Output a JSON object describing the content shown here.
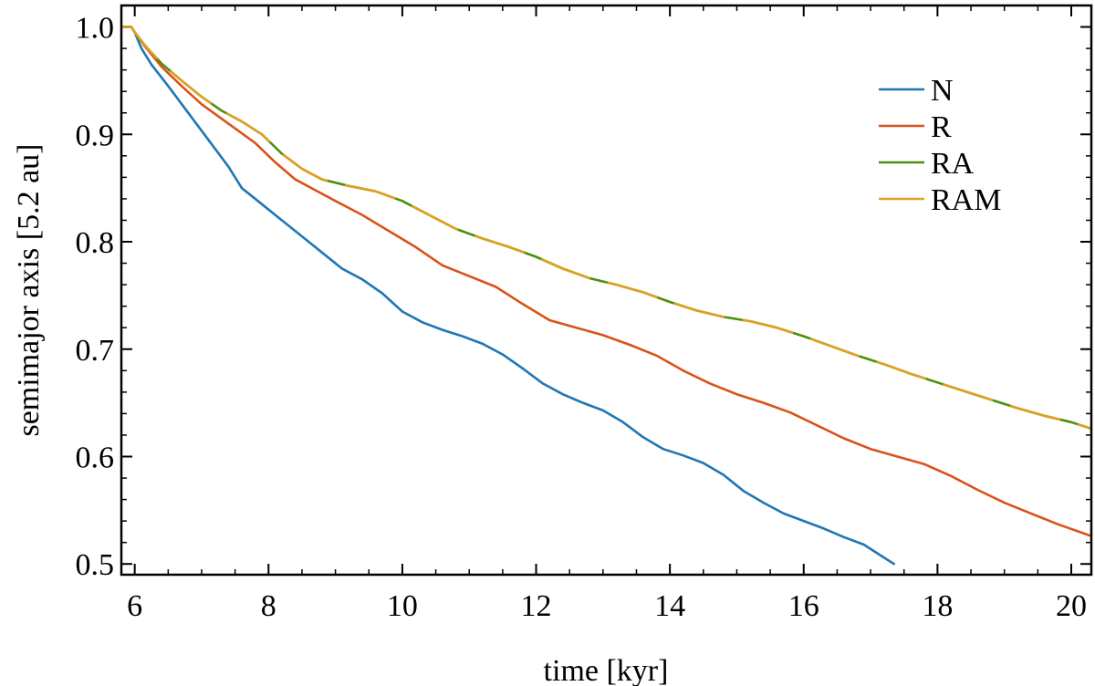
{
  "chart_data": {
    "type": "line",
    "title": "",
    "xlabel": "time [kyr]",
    "ylabel": "semimajor axis [5.2 au]",
    "xlim": [
      5.8,
      20.3
    ],
    "ylim": [
      0.49,
      1.02
    ],
    "x_ticks": [
      6,
      8,
      10,
      12,
      14,
      16,
      18,
      20
    ],
    "x_tick_labels": [
      "6",
      "8",
      "10",
      "12",
      "14",
      "16",
      "18",
      "20"
    ],
    "x_minor_step": 0.5,
    "y_ticks": [
      0.5,
      0.6,
      0.7,
      0.8,
      0.9,
      1.0
    ],
    "y_tick_labels": [
      "0.5",
      "0.6",
      "0.7",
      "0.8",
      "0.9",
      "1.0"
    ],
    "y_minor_step": 0.02,
    "grid": false,
    "legend_position": "top-right",
    "series": [
      {
        "name": "N",
        "color": "#1f77b4",
        "dashed": false,
        "points": [
          [
            5.8,
            1.0
          ],
          [
            5.95,
            1.0
          ],
          [
            6.0,
            0.995
          ],
          [
            6.1,
            0.98
          ],
          [
            6.25,
            0.965
          ],
          [
            6.5,
            0.945
          ],
          [
            6.8,
            0.92
          ],
          [
            7.1,
            0.895
          ],
          [
            7.4,
            0.87
          ],
          [
            7.6,
            0.85
          ],
          [
            7.9,
            0.835
          ],
          [
            8.2,
            0.82
          ],
          [
            8.5,
            0.805
          ],
          [
            8.8,
            0.79
          ],
          [
            9.1,
            0.775
          ],
          [
            9.4,
            0.765
          ],
          [
            9.7,
            0.752
          ],
          [
            10.0,
            0.735
          ],
          [
            10.3,
            0.725
          ],
          [
            10.6,
            0.718
          ],
          [
            10.9,
            0.712
          ],
          [
            11.2,
            0.705
          ],
          [
            11.5,
            0.695
          ],
          [
            11.8,
            0.682
          ],
          [
            12.1,
            0.668
          ],
          [
            12.4,
            0.658
          ],
          [
            12.7,
            0.65
          ],
          [
            13.0,
            0.643
          ],
          [
            13.3,
            0.632
          ],
          [
            13.6,
            0.618
          ],
          [
            13.9,
            0.607
          ],
          [
            14.2,
            0.601
          ],
          [
            14.5,
            0.594
          ],
          [
            14.8,
            0.583
          ],
          [
            15.1,
            0.568
          ],
          [
            15.4,
            0.557
          ],
          [
            15.7,
            0.547
          ],
          [
            16.0,
            0.54
          ],
          [
            16.3,
            0.533
          ],
          [
            16.6,
            0.525
          ],
          [
            16.9,
            0.518
          ],
          [
            17.1,
            0.51
          ],
          [
            17.35,
            0.5
          ]
        ]
      },
      {
        "name": "R",
        "color": "#d95319",
        "dashed": false,
        "points": [
          [
            5.8,
            1.0
          ],
          [
            5.95,
            1.0
          ],
          [
            6.0,
            0.995
          ],
          [
            6.15,
            0.982
          ],
          [
            6.4,
            0.963
          ],
          [
            6.7,
            0.945
          ],
          [
            7.0,
            0.928
          ],
          [
            7.4,
            0.91
          ],
          [
            7.8,
            0.892
          ],
          [
            8.1,
            0.874
          ],
          [
            8.4,
            0.858
          ],
          [
            8.7,
            0.848
          ],
          [
            9.0,
            0.838
          ],
          [
            9.4,
            0.825
          ],
          [
            9.8,
            0.81
          ],
          [
            10.2,
            0.795
          ],
          [
            10.6,
            0.778
          ],
          [
            11.0,
            0.768
          ],
          [
            11.4,
            0.758
          ],
          [
            11.8,
            0.742
          ],
          [
            12.2,
            0.727
          ],
          [
            12.6,
            0.72
          ],
          [
            13.0,
            0.713
          ],
          [
            13.4,
            0.704
          ],
          [
            13.8,
            0.694
          ],
          [
            14.2,
            0.68
          ],
          [
            14.6,
            0.668
          ],
          [
            15.0,
            0.658
          ],
          [
            15.4,
            0.65
          ],
          [
            15.8,
            0.641
          ],
          [
            16.2,
            0.629
          ],
          [
            16.6,
            0.617
          ],
          [
            17.0,
            0.607
          ],
          [
            17.4,
            0.6
          ],
          [
            17.8,
            0.593
          ],
          [
            18.2,
            0.582
          ],
          [
            18.6,
            0.569
          ],
          [
            19.0,
            0.557
          ],
          [
            19.4,
            0.547
          ],
          [
            19.8,
            0.537
          ],
          [
            20.3,
            0.526
          ]
        ]
      },
      {
        "name": "RA",
        "color": "#4d8f0c",
        "dashed": true,
        "points": [
          [
            5.8,
            1.0
          ],
          [
            5.95,
            1.0
          ],
          [
            6.0,
            0.995
          ],
          [
            6.15,
            0.983
          ],
          [
            6.4,
            0.966
          ],
          [
            6.7,
            0.95
          ],
          [
            7.0,
            0.935
          ],
          [
            7.3,
            0.922
          ],
          [
            7.6,
            0.912
          ],
          [
            7.9,
            0.9
          ],
          [
            8.2,
            0.882
          ],
          [
            8.5,
            0.868
          ],
          [
            8.8,
            0.858
          ],
          [
            9.2,
            0.852
          ],
          [
            9.6,
            0.847
          ],
          [
            10.0,
            0.838
          ],
          [
            10.4,
            0.825
          ],
          [
            10.8,
            0.812
          ],
          [
            11.2,
            0.803
          ],
          [
            11.6,
            0.795
          ],
          [
            12.0,
            0.786
          ],
          [
            12.4,
            0.775
          ],
          [
            12.8,
            0.766
          ],
          [
            13.2,
            0.76
          ],
          [
            13.6,
            0.753
          ],
          [
            14.0,
            0.744
          ],
          [
            14.4,
            0.736
          ],
          [
            14.8,
            0.73
          ],
          [
            15.2,
            0.726
          ],
          [
            15.6,
            0.72
          ],
          [
            16.0,
            0.712
          ],
          [
            16.4,
            0.703
          ],
          [
            16.8,
            0.694
          ],
          [
            17.2,
            0.686
          ],
          [
            17.6,
            0.677
          ],
          [
            18.0,
            0.669
          ],
          [
            18.4,
            0.661
          ],
          [
            18.8,
            0.653
          ],
          [
            19.2,
            0.645
          ],
          [
            19.6,
            0.638
          ],
          [
            20.0,
            0.632
          ],
          [
            20.3,
            0.626
          ]
        ]
      },
      {
        "name": "RAM",
        "color": "#e0a020",
        "dashed": false,
        "points": [
          [
            5.8,
            1.0
          ],
          [
            5.95,
            1.0
          ],
          [
            6.0,
            0.995
          ],
          [
            6.15,
            0.983
          ],
          [
            6.4,
            0.966
          ],
          [
            6.7,
            0.95
          ],
          [
            7.0,
            0.935
          ],
          [
            7.3,
            0.922
          ],
          [
            7.6,
            0.912
          ],
          [
            7.9,
            0.9
          ],
          [
            8.2,
            0.882
          ],
          [
            8.5,
            0.868
          ],
          [
            8.8,
            0.858
          ],
          [
            9.2,
            0.852
          ],
          [
            9.6,
            0.847
          ],
          [
            10.0,
            0.838
          ],
          [
            10.4,
            0.825
          ],
          [
            10.8,
            0.812
          ],
          [
            11.2,
            0.803
          ],
          [
            11.6,
            0.795
          ],
          [
            12.0,
            0.786
          ],
          [
            12.4,
            0.775
          ],
          [
            12.8,
            0.766
          ],
          [
            13.2,
            0.76
          ],
          [
            13.6,
            0.753
          ],
          [
            14.0,
            0.744
          ],
          [
            14.4,
            0.736
          ],
          [
            14.8,
            0.73
          ],
          [
            15.2,
            0.726
          ],
          [
            15.6,
            0.72
          ],
          [
            16.0,
            0.712
          ],
          [
            16.4,
            0.703
          ],
          [
            16.8,
            0.694
          ],
          [
            17.2,
            0.686
          ],
          [
            17.6,
            0.677
          ],
          [
            18.0,
            0.669
          ],
          [
            18.4,
            0.661
          ],
          [
            18.8,
            0.653
          ],
          [
            19.2,
            0.645
          ],
          [
            19.6,
            0.638
          ],
          [
            20.0,
            0.632
          ],
          [
            20.3,
            0.626
          ]
        ]
      }
    ]
  }
}
